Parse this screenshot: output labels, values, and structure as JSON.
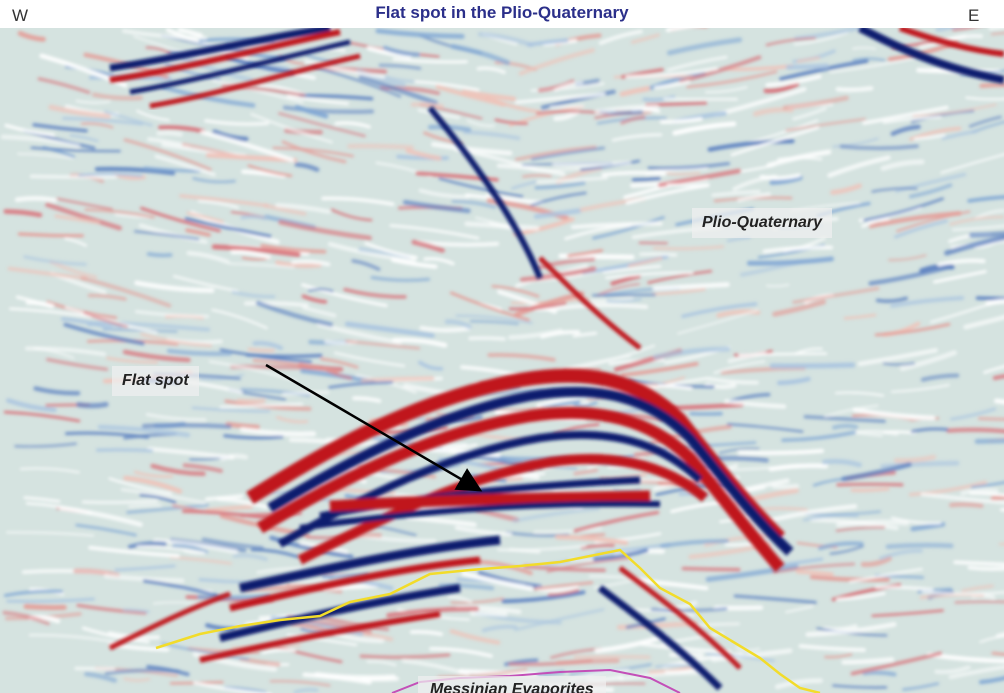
{
  "title": "Flat spot in the Plio-Quaternary",
  "compass": {
    "west": "W",
    "east": "E"
  },
  "annotations": {
    "plio_quaternary": "Plio-Quaternary",
    "flat_spot": "Flat spot",
    "messinian": "Messinian Evaporites"
  },
  "colors": {
    "title": "#2b2f8a",
    "positive_amplitude": "#c0181e",
    "negative_amplitude": "#101a6e",
    "background_blue": "#bcd6ec",
    "background_green": "#d8e4cc",
    "horizon_top_messinian": "#f2dc2a",
    "horizon_base": "#c34fb8",
    "arrow": "#000000"
  }
}
